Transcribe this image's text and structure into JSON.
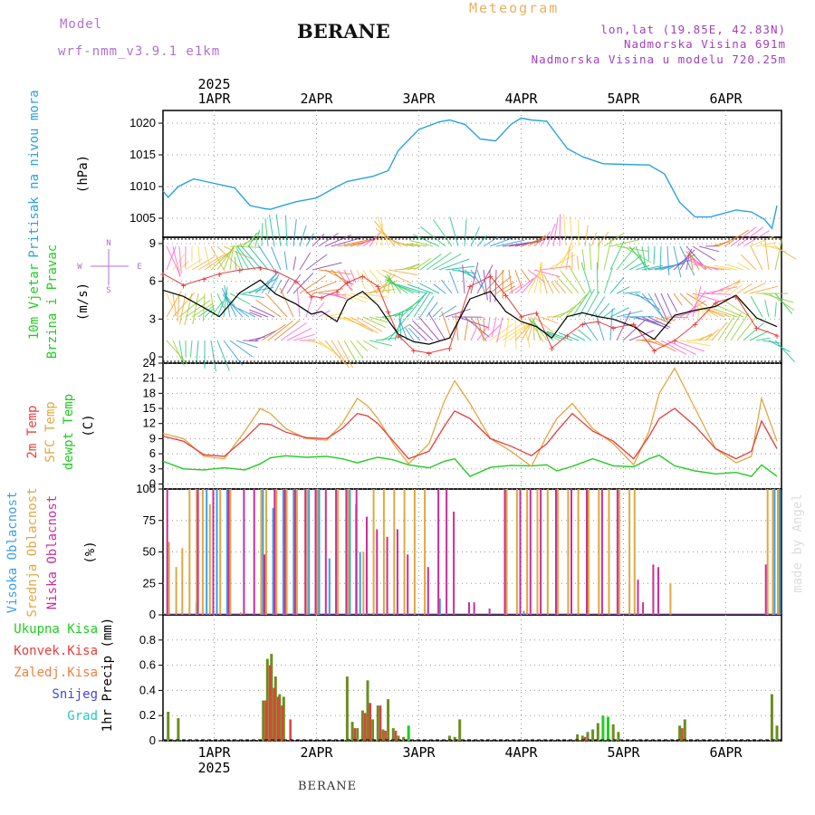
{
  "header": {
    "model_label": "Model",
    "model_name": "wrf-nmm_v3.9.1 e1km",
    "location": "BERANE",
    "meteogram": "Meteogram",
    "lonlat": "lon,lat (19.85E, 42.83N)",
    "elevation": "Nadmorska Visina 691m",
    "model_elevation": "Nadmorska Visina u modelu 720.25m"
  },
  "footer": {
    "location": "BERANE",
    "credit": "made by Angel"
  },
  "colors": {
    "pressure": "#29a3e0",
    "temp2m": "#e83c3c",
    "sfc_temp": "#e0a840",
    "dewpt": "#22cc22",
    "high_cloud": "#3aa0e8",
    "mid_cloud": "#e0a840",
    "low_cloud": "#cc2e9a",
    "total_precip": "#22cc22",
    "conv_precip": "#e83c3c",
    "freezing": "#f08040",
    "snow": "#4444dd",
    "hail": "#22c8c8",
    "olive": "#6b8e23",
    "wind_label": "#22cc22",
    "wind_dir": "#b070d0"
  },
  "chart_data": [
    {
      "type": "line",
      "panel": "pressure",
      "ylabel": "Pritisak na nivou mora",
      "unit": "(hPa)",
      "ylim": [
        1002,
        1022
      ],
      "yticks": [
        1005,
        1010,
        1015,
        1020
      ],
      "year": "2025",
      "day_labels": [
        "1APR",
        "2APR",
        "3APR",
        "4APR",
        "5APR",
        "6APR"
      ],
      "x_days": [
        0.5,
        0.55,
        0.65,
        0.8,
        1.0,
        1.2,
        1.35,
        1.5,
        1.55,
        1.65,
        1.8,
        2.0,
        2.2,
        2.3,
        2.45,
        2.55,
        2.7,
        2.8,
        3.0,
        3.2,
        3.3,
        3.45,
        3.6,
        3.75,
        3.9,
        4.0,
        4.1,
        4.25,
        4.45,
        4.6,
        4.8,
        5.0,
        5.25,
        5.4,
        5.55,
        5.7,
        5.85,
        6.1,
        6.25,
        6.38,
        6.45,
        6.5
      ],
      "values": [
        1009.3,
        1008.3,
        1010.0,
        1011.2,
        1010.5,
        1009.8,
        1007.0,
        1006.5,
        1006.4,
        1006.9,
        1007.6,
        1008.2,
        1010.0,
        1010.8,
        1011.3,
        1011.6,
        1012.5,
        1015.7,
        1019.0,
        1020.2,
        1020.5,
        1019.8,
        1017.5,
        1017.2,
        1019.8,
        1020.8,
        1020.5,
        1020.3,
        1016.0,
        1014.7,
        1013.6,
        1013.5,
        1013.4,
        1012.0,
        1007.5,
        1005.2,
        1005.2,
        1006.3,
        1006.0,
        1004.8,
        1003.4,
        1007.0
      ]
    },
    {
      "type": "line",
      "panel": "wind",
      "ylabel": "10m Vjetar Brzina i Pravac",
      "unit": "(m/s)",
      "ylim": [
        -0.5,
        9.5
      ],
      "yticks": [
        0,
        3,
        6,
        9
      ],
      "compass": [
        "N",
        "W",
        "E",
        "S"
      ],
      "x_days": [
        0.5,
        0.7,
        0.9,
        1.05,
        1.25,
        1.45,
        1.6,
        1.8,
        1.95,
        2.05,
        2.2,
        2.3,
        2.45,
        2.6,
        2.7,
        2.8,
        2.95,
        3.1,
        3.3,
        3.5,
        3.7,
        3.85,
        4.0,
        4.15,
        4.3,
        4.45,
        4.6,
        4.75,
        4.9,
        5.1,
        5.3,
        5.5,
        5.7,
        5.9,
        6.1,
        6.3,
        6.5
      ],
      "speed": [
        5.3,
        4.8,
        3.9,
        3.2,
        5.1,
        6.1,
        5.0,
        4.2,
        3.4,
        3.6,
        2.8,
        4.5,
        5.2,
        4.1,
        2.9,
        1.8,
        1.2,
        1.0,
        1.5,
        4.6,
        5.2,
        3.6,
        2.8,
        2.4,
        1.5,
        3.2,
        3.5,
        3.2,
        3.0,
        2.4,
        1.4,
        3.3,
        3.7,
        4.0,
        4.9,
        3.1,
        2.4
      ],
      "gust": [
        6.6,
        5.7,
        6.2,
        6.6,
        6.9,
        7.1,
        6.8,
        6.0,
        4.8,
        4.7,
        5.2,
        5.9,
        6.4,
        5.6,
        3.6,
        1.7,
        0.5,
        0.3,
        0.7,
        5.6,
        6.4,
        4.9,
        3.2,
        3.5,
        0.7,
        1.7,
        2.6,
        2.8,
        2.3,
        2.6,
        0.5,
        1.3,
        2.6,
        4.3,
        4.8,
        2.3,
        1.7
      ]
    },
    {
      "type": "line",
      "panel": "temperature",
      "ylabel": "2m Temp / SFC Temp / dewpt Temp",
      "series_names": [
        "2m Temp",
        "SFC Temp",
        "dewpt Temp"
      ],
      "unit": "(C)",
      "ylim": [
        -1,
        24
      ],
      "yticks": [
        0,
        3,
        6,
        9,
        12,
        15,
        18,
        21,
        24
      ],
      "x_days": [
        0.5,
        0.7,
        0.9,
        1.1,
        1.3,
        1.45,
        1.55,
        1.7,
        1.9,
        2.1,
        2.25,
        2.4,
        2.5,
        2.6,
        2.75,
        2.9,
        3.1,
        3.25,
        3.35,
        3.5,
        3.7,
        3.9,
        4.1,
        4.25,
        4.35,
        4.5,
        4.7,
        4.9,
        5.1,
        5.25,
        5.35,
        5.5,
        5.7,
        5.9,
        6.1,
        6.25,
        6.35,
        6.5
      ],
      "temp2m": [
        9.5,
        8.5,
        5.8,
        5.5,
        9.0,
        12.0,
        11.8,
        10.3,
        9.2,
        9.0,
        11.0,
        14.0,
        13.5,
        12.0,
        8.5,
        5.0,
        6.5,
        11.5,
        14.5,
        13.0,
        9.0,
        7.5,
        5.6,
        8.0,
        10.5,
        14.0,
        10.5,
        8.5,
        5.0,
        9.5,
        13.0,
        15.0,
        11.5,
        7.0,
        5.0,
        6.5,
        12.5,
        7.0
      ],
      "sfc_temp": [
        10.0,
        9.0,
        5.5,
        5.0,
        10.5,
        15.0,
        14.0,
        11.0,
        9.0,
        8.7,
        12.0,
        17.0,
        15.5,
        13.0,
        8.0,
        4.0,
        8.0,
        16.5,
        20.5,
        16.0,
        9.0,
        6.5,
        3.5,
        9.5,
        13.0,
        16.0,
        11.0,
        8.0,
        3.8,
        10.5,
        18.0,
        23.0,
        15.0,
        7.0,
        4.2,
        5.5,
        17.0,
        8.5
      ],
      "dewpt": [
        4.5,
        3.0,
        2.8,
        3.2,
        2.8,
        4.0,
        5.2,
        5.6,
        5.3,
        5.5,
        5.0,
        4.2,
        4.8,
        5.3,
        4.8,
        3.8,
        3.2,
        4.5,
        5.0,
        1.5,
        3.3,
        3.7,
        3.6,
        3.8,
        2.6,
        3.5,
        5.0,
        3.6,
        3.4,
        5.0,
        5.7,
        3.6,
        2.6,
        2.0,
        2.3,
        1.5,
        3.8,
        1.5
      ]
    },
    {
      "type": "bar",
      "panel": "cloud",
      "ylabel": "Visoka Oblacnost / Srednja Oblacnost / Niska Oblacnost",
      "series_names": [
        "Visoka Oblacnost",
        "Srednja Oblacnost",
        "Niska Oblacnost"
      ],
      "unit": "(%)",
      "ylim": [
        0,
        100
      ],
      "yticks": [
        0,
        25,
        50,
        75,
        100
      ],
      "high": [
        [
          0.55,
          0
        ],
        [
          0.8,
          10
        ],
        [
          0.9,
          100
        ],
        [
          1.0,
          100
        ],
        [
          1.1,
          100
        ],
        [
          1.45,
          100
        ],
        [
          1.55,
          85
        ],
        [
          1.65,
          100
        ],
        [
          1.75,
          100
        ],
        [
          1.9,
          100
        ],
        [
          2.0,
          100
        ],
        [
          2.1,
          45
        ],
        [
          2.3,
          100
        ],
        [
          2.36,
          88
        ],
        [
          2.4,
          50
        ],
        [
          3.18,
          13
        ],
        [
          3.25,
          0
        ],
        [
          4.0,
          3
        ],
        [
          4.15,
          0
        ],
        [
          6.45,
          100
        ],
        [
          6.5,
          100
        ]
      ],
      "mid": [
        [
          0.55,
          58
        ],
        [
          0.62,
          38
        ],
        [
          0.68,
          53
        ],
        [
          0.75,
          100
        ],
        [
          0.82,
          100
        ],
        [
          0.88,
          100
        ],
        [
          0.95,
          88
        ],
        [
          1.05,
          100
        ],
        [
          1.15,
          100
        ],
        [
          1.25,
          2
        ],
        [
          1.45,
          100
        ],
        [
          1.5,
          100
        ],
        [
          1.6,
          100
        ],
        [
          1.7,
          100
        ],
        [
          1.8,
          100
        ],
        [
          1.9,
          100
        ],
        [
          2.0,
          100
        ],
        [
          2.2,
          100
        ],
        [
          2.3,
          100
        ],
        [
          2.45,
          50
        ],
        [
          2.55,
          100
        ],
        [
          2.65,
          100
        ],
        [
          2.75,
          100
        ],
        [
          2.85,
          100
        ],
        [
          2.95,
          100
        ],
        [
          3.05,
          100
        ],
        [
          3.25,
          0
        ],
        [
          3.4,
          0
        ],
        [
          3.6,
          0
        ],
        [
          3.85,
          100
        ],
        [
          3.95,
          100
        ],
        [
          4.05,
          100
        ],
        [
          4.15,
          100
        ],
        [
          4.25,
          100
        ],
        [
          4.35,
          100
        ],
        [
          4.45,
          100
        ],
        [
          4.55,
          100
        ],
        [
          4.65,
          100
        ],
        [
          4.75,
          100
        ],
        [
          4.85,
          100
        ],
        [
          4.95,
          100
        ],
        [
          5.05,
          100
        ],
        [
          5.1,
          100
        ],
        [
          5.45,
          25
        ],
        [
          6.4,
          100
        ],
        [
          6.45,
          100
        ],
        [
          6.5,
          100
        ]
      ],
      "low": [
        [
          0.55,
          100
        ],
        [
          0.85,
          100
        ],
        [
          1.0,
          100
        ],
        [
          1.15,
          100
        ],
        [
          1.3,
          100
        ],
        [
          1.4,
          100
        ],
        [
          1.5,
          48
        ],
        [
          1.6,
          100
        ],
        [
          1.7,
          100
        ],
        [
          1.8,
          100
        ],
        [
          1.9,
          100
        ],
        [
          2.0,
          100
        ],
        [
          2.1,
          100
        ],
        [
          2.2,
          100
        ],
        [
          2.3,
          100
        ],
        [
          2.4,
          100
        ],
        [
          2.5,
          78
        ],
        [
          2.6,
          68
        ],
        [
          2.7,
          62
        ],
        [
          2.8,
          68
        ],
        [
          2.9,
          48
        ],
        [
          3.1,
          38
        ],
        [
          3.2,
          100
        ],
        [
          3.28,
          100
        ],
        [
          3.35,
          82
        ],
        [
          3.5,
          10
        ],
        [
          3.55,
          10
        ],
        [
          3.7,
          5
        ],
        [
          3.85,
          100
        ],
        [
          4.0,
          100
        ],
        [
          4.1,
          100
        ],
        [
          4.2,
          100
        ],
        [
          4.35,
          100
        ],
        [
          4.5,
          100
        ],
        [
          4.65,
          100
        ],
        [
          4.8,
          100
        ],
        [
          4.95,
          100
        ],
        [
          5.15,
          28
        ],
        [
          5.2,
          10
        ],
        [
          5.3,
          40
        ],
        [
          5.35,
          38
        ],
        [
          5.55,
          0
        ],
        [
          6.4,
          40
        ]
      ]
    },
    {
      "type": "bar",
      "panel": "precip",
      "ylabel": "1hr Precip (mm)",
      "unit": "(mm)",
      "ylim": [
        0,
        1.0
      ],
      "yticks": [
        0,
        0.2,
        0.4,
        0.6,
        0.8
      ],
      "legend": [
        "Ukupna Kisa",
        "Konvek.Kisa",
        "Zaledj.Kisa",
        "Snijeg",
        "Grad"
      ],
      "total": [
        [
          0.55,
          0.23
        ],
        [
          0.65,
          0.18
        ],
        [
          1.48,
          0.32
        ],
        [
          1.52,
          0.65
        ],
        [
          1.56,
          0.69
        ],
        [
          1.6,
          0.51
        ],
        [
          1.64,
          0.37
        ],
        [
          1.68,
          0.35
        ],
        [
          2.3,
          0.51
        ],
        [
          2.35,
          0.15
        ],
        [
          2.4,
          0.1
        ],
        [
          2.45,
          0.24
        ],
        [
          2.5,
          0.48
        ],
        [
          2.55,
          0.17
        ],
        [
          2.6,
          0.28
        ],
        [
          2.65,
          0.09
        ],
        [
          2.7,
          0.33
        ],
        [
          2.75,
          0.1
        ],
        [
          2.8,
          0.04
        ],
        [
          2.85,
          0.03
        ],
        [
          2.9,
          0.12
        ],
        [
          3.3,
          0.04
        ],
        [
          3.35,
          0.03
        ],
        [
          3.4,
          0.17
        ],
        [
          4.55,
          0.05
        ],
        [
          4.6,
          0.04
        ],
        [
          4.65,
          0.07
        ],
        [
          4.7,
          0.09
        ],
        [
          4.75,
          0.14
        ],
        [
          4.8,
          0.2
        ],
        [
          4.85,
          0.19
        ],
        [
          4.9,
          0.13
        ],
        [
          4.95,
          0.07
        ],
        [
          5.55,
          0.12
        ],
        [
          5.6,
          0.17
        ],
        [
          6.45,
          0.37
        ],
        [
          6.5,
          0.12
        ]
      ],
      "convective": [
        [
          1.48,
          0.32
        ],
        [
          1.52,
          0.6
        ],
        [
          1.56,
          0.42
        ],
        [
          1.6,
          0.35
        ],
        [
          1.64,
          0.28
        ],
        [
          1.72,
          0.17
        ],
        [
          2.35,
          0.1
        ],
        [
          2.45,
          0.22
        ],
        [
          2.5,
          0.3
        ],
        [
          2.6,
          0.28
        ],
        [
          2.65,
          0.08
        ],
        [
          2.75,
          0.08
        ],
        [
          4.6,
          0.03
        ],
        [
          5.55,
          0.1
        ]
      ]
    }
  ]
}
